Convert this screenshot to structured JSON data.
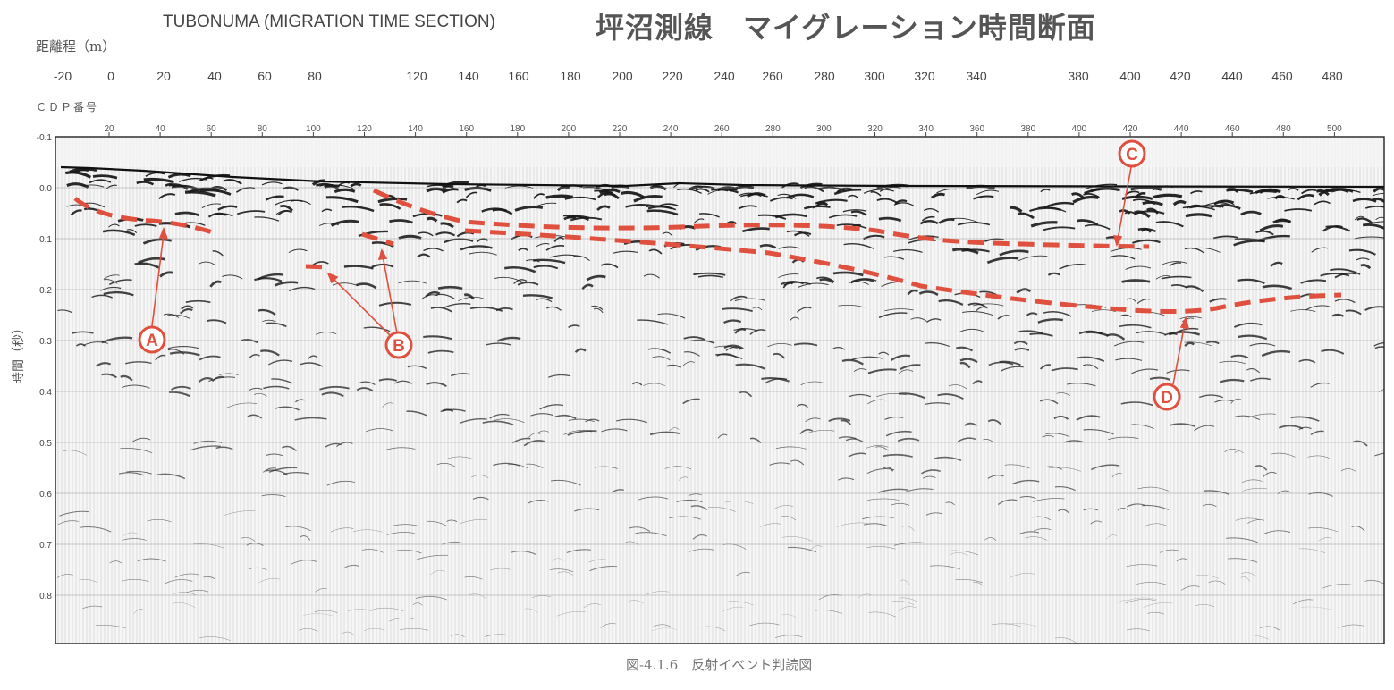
{
  "header": {
    "title_en": "TUBONUMA (MIGRATION TIME SECTION)",
    "title_jp": "坪沼測線　マイグレーション時間断面",
    "distance_label": "距離程（m）",
    "cdp_label": "ＣＤＰ番号"
  },
  "distance_ticks": [
    "-20",
    "0",
    "20",
    "40",
    "60",
    "80",
    "120",
    "140",
    "160",
    "180",
    "200",
    "220",
    "240",
    "260",
    "280",
    "300",
    "320",
    "340",
    "380",
    "400",
    "420",
    "440",
    "460",
    "480"
  ],
  "cdp_ticks": [
    "20",
    "40",
    "60",
    "80",
    "100",
    "120",
    "140",
    "160",
    "180",
    "200",
    "220",
    "240",
    "260",
    "280",
    "300",
    "320",
    "340",
    "360",
    "380",
    "400",
    "420",
    "440",
    "460",
    "480",
    "500"
  ],
  "time_axis": {
    "label": "時間（秒）",
    "ticks": [
      "-0.1",
      "0.0",
      "0.1",
      "0.2",
      "0.3",
      "0.4",
      "0.5",
      "0.6",
      "0.7",
      "0.8"
    ]
  },
  "markers": [
    {
      "id": "a",
      "label": "A"
    },
    {
      "id": "b",
      "label": "B"
    },
    {
      "id": "c",
      "label": "C"
    },
    {
      "id": "d",
      "label": "D"
    }
  ],
  "caption": "図-4.1.6　反射イベント判読図",
  "colors": {
    "event_line": "#e0503f",
    "frame": "#222222",
    "wiggle": "#1a1a1a",
    "trace_fill": "#d9d9d9"
  }
}
